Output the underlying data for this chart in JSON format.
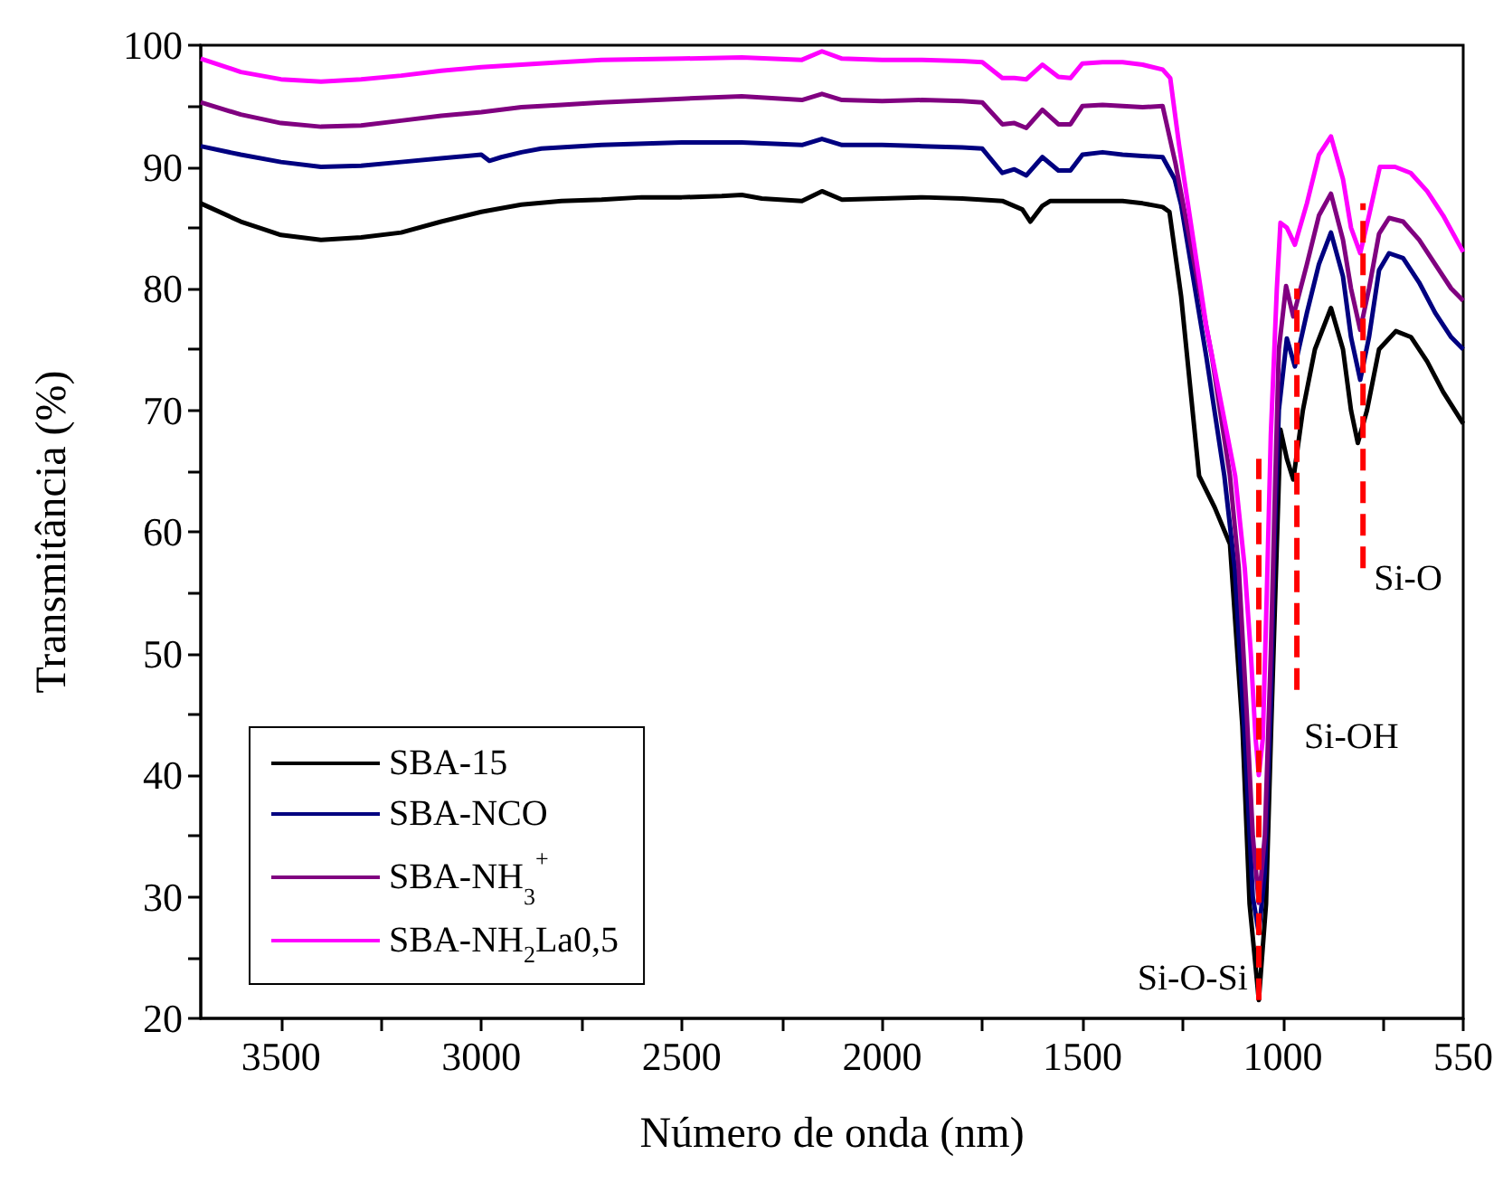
{
  "chart_data": {
    "type": "line",
    "xlabel": "Número de onda (nm)",
    "ylabel": "Transmitância (%)",
    "xlim": [
      3700,
      550
    ],
    "ylim": [
      20,
      100
    ],
    "xticks": [
      3500,
      {
        "value": 3250,
        "label": null
      },
      3000,
      {
        "value": 2750,
        "label": null
      },
      2500,
      {
        "value": 2250,
        "label": null
      },
      2000,
      {
        "value": 1750,
        "label": null
      },
      1500,
      {
        "value": 1250,
        "label": null
      },
      1000,
      {
        "value": 750,
        "label": null
      },
      550
    ],
    "yticks": [
      20,
      {
        "value": 25,
        "label": null
      },
      30,
      {
        "value": 35,
        "label": null
      },
      40,
      {
        "value": 45,
        "label": null
      },
      50,
      {
        "value": 55,
        "label": null
      },
      60,
      {
        "value": 65,
        "label": null
      },
      70,
      {
        "value": 75,
        "label": null
      },
      80,
      {
        "value": 85,
        "label": null
      },
      90,
      {
        "value": 95,
        "label": null
      },
      100
    ],
    "grid": false,
    "legend": "bottom left",
    "marker": "none",
    "line_style": "solid",
    "series": [
      {
        "name": "SBA-15",
        "color": "#000000",
        "x": [
          3700,
          3600,
          3500,
          3400,
          3300,
          3200,
          3100,
          3000,
          2900,
          2800,
          2700,
          2600,
          2500,
          2400,
          2350,
          2300,
          2200,
          2150,
          2100,
          2000,
          1900,
          1800,
          1700,
          1650,
          1630,
          1600,
          1580,
          1500,
          1400,
          1350,
          1300,
          1283,
          1254,
          1209,
          1170,
          1132,
          1101,
          1083,
          1060,
          1042,
          1029,
          1015,
          1006,
          990,
          974,
          950,
          920,
          880,
          850,
          830,
          813,
          790,
          760,
          718,
          680,
          640,
          600,
          550
        ],
        "values": [
          87,
          85.5,
          84.4,
          84,
          84.2,
          84.6,
          85.5,
          86.3,
          86.9,
          87.2,
          87.3,
          87.5,
          87.5,
          87.6,
          87.7,
          87.4,
          87.2,
          88,
          87.3,
          87.4,
          87.5,
          87.4,
          87.2,
          86.5,
          85.5,
          86.8,
          87.2,
          87.2,
          87.2,
          87,
          86.7,
          86.3,
          79.4,
          64.6,
          62,
          59,
          44,
          29.4,
          21.5,
          29.4,
          44,
          59,
          68.4,
          66,
          64.3,
          70,
          75,
          78.4,
          75,
          70,
          67.3,
          70,
          75,
          76.5,
          76,
          74,
          71.5,
          68.9
        ]
      },
      {
        "name": "SBA-NCO",
        "color": "#000080",
        "x": [
          3700,
          3600,
          3500,
          3400,
          3300,
          3200,
          3100,
          3000,
          2980,
          2950,
          2900,
          2850,
          2700,
          2500,
          2350,
          2200,
          2150,
          2100,
          2000,
          1900,
          1800,
          1750,
          1700,
          1670,
          1640,
          1600,
          1560,
          1530,
          1500,
          1450,
          1400,
          1350,
          1300,
          1270,
          1254,
          1191,
          1146,
          1120,
          1095,
          1075,
          1060,
          1045,
          1030,
          1020,
          1010,
          990,
          970,
          940,
          910,
          880,
          850,
          830,
          807,
          785,
          760,
          735,
          700,
          660,
          620,
          580,
          550
        ],
        "values": [
          91.7,
          91,
          90.4,
          90,
          90.1,
          90.4,
          90.7,
          91,
          90.5,
          90.8,
          91.2,
          91.5,
          91.8,
          92,
          92,
          91.8,
          92.3,
          91.8,
          91.8,
          91.7,
          91.6,
          91.5,
          89.5,
          89.8,
          89.3,
          90.8,
          89.7,
          89.7,
          91,
          91.2,
          91,
          90.9,
          90.8,
          89,
          86.9,
          74.4,
          64.6,
          57,
          43,
          30,
          27,
          32,
          46,
          60,
          70,
          75.9,
          73.6,
          78,
          82,
          84.6,
          81,
          76,
          72.5,
          76,
          81.5,
          82.9,
          82.5,
          80.5,
          78,
          76,
          75
        ]
      },
      {
        "name": "SBA-NH$_{3}$$^{+}$",
        "color": "#800080",
        "x": [
          3700,
          3600,
          3500,
          3400,
          3300,
          3200,
          3100,
          3000,
          2900,
          2800,
          2700,
          2500,
          2350,
          2200,
          2150,
          2100,
          2000,
          1900,
          1800,
          1750,
          1700,
          1670,
          1640,
          1600,
          1560,
          1530,
          1500,
          1450,
          1400,
          1350,
          1300,
          1268,
          1177,
          1132,
          1110,
          1090,
          1075,
          1060,
          1045,
          1030,
          1020,
          1010,
          992,
          974,
          940,
          910,
          880,
          850,
          830,
          807,
          785,
          760,
          735,
          700,
          660,
          620,
          580,
          550
        ],
        "values": [
          95.3,
          94.3,
          93.6,
          93.3,
          93.4,
          93.8,
          94.2,
          94.5,
          94.9,
          95.1,
          95.3,
          95.6,
          95.8,
          95.5,
          96,
          95.5,
          95.4,
          95.5,
          95.4,
          95.3,
          93.5,
          93.6,
          93.2,
          94.7,
          93.5,
          93.5,
          95,
          95.1,
          95,
          94.9,
          95,
          90.3,
          74.4,
          64.6,
          57,
          45,
          35,
          29.5,
          35,
          50,
          63,
          75,
          80.2,
          77.7,
          82,
          86,
          87.8,
          84,
          80,
          76.6,
          80,
          84.5,
          85.8,
          85.5,
          84,
          82,
          80,
          79
        ]
      },
      {
        "name": "SBA-NH$_{2}$La0,5",
        "color": "#ff00ff",
        "x": [
          3700,
          3600,
          3500,
          3400,
          3300,
          3200,
          3100,
          3000,
          2900,
          2800,
          2700,
          2500,
          2350,
          2200,
          2150,
          2100,
          2000,
          1900,
          1800,
          1750,
          1700,
          1670,
          1640,
          1600,
          1560,
          1530,
          1500,
          1450,
          1400,
          1350,
          1300,
          1281,
          1259,
          1191,
          1119,
          1095,
          1080,
          1068,
          1060,
          1050,
          1040,
          1030,
          1015,
          1006,
          990,
          970,
          940,
          910,
          880,
          850,
          830,
          807,
          785,
          758,
          720,
          681,
          640,
          600,
          550
        ],
        "values": [
          98.9,
          97.8,
          97.2,
          97,
          97.2,
          97.5,
          97.9,
          98.2,
          98.4,
          98.6,
          98.8,
          98.9,
          99,
          98.8,
          99.5,
          98.9,
          98.8,
          98.8,
          98.7,
          98.6,
          97.3,
          97.3,
          97.2,
          98.4,
          97.4,
          97.3,
          98.5,
          98.6,
          98.6,
          98.4,
          98,
          97.3,
          91.8,
          76.9,
          64.6,
          57,
          50,
          43,
          40,
          43,
          55,
          68,
          80,
          85.4,
          85,
          83.6,
          87,
          91,
          92.5,
          89,
          85,
          82.9,
          86,
          90,
          90,
          89.5,
          88,
          86,
          83
        ]
      },
      {
        "color": "#ff0000",
        "line_style": "dashed",
        "x": [
          1060,
          1060
        ],
        "values": [
          21.5,
          66
        ]
      },
      {
        "color": "#ff0000",
        "line_style": "dashed",
        "x": [
          965,
          965
        ],
        "values": [
          47,
          80
        ]
      },
      {
        "color": "#ff0000",
        "line_style": "dashed",
        "x": [
          800,
          800
        ],
        "values": [
          57,
          87
        ]
      }
    ],
    "annotations": [
      "Si-O-Si",
      "Si-OH",
      "Si-O"
    ]
  }
}
